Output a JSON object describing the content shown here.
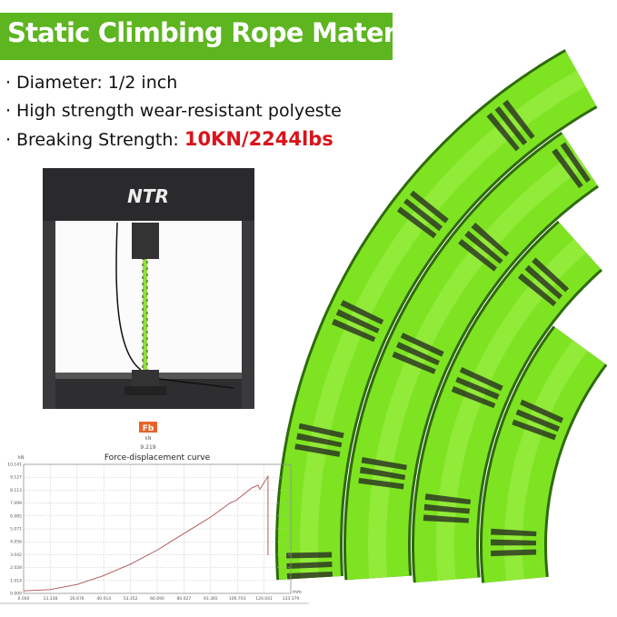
{
  "banner": {
    "title": "Static Climbing Rope Material"
  },
  "specs": [
    {
      "label": "Diameter: 1/2 inch"
    },
    {
      "label": "High strength wear-resistant polyeste"
    },
    {
      "label": "Breaking Strength: ",
      "highlight": "10KN/2244lbs"
    }
  ],
  "machine": {
    "brand": "NTR"
  },
  "colors": {
    "banner": "#5db51f",
    "highlight": "#d9141b",
    "rope": "#7ee422",
    "curve": "#b05050",
    "fb_badge": "#e8642a"
  },
  "chart_data": {
    "type": "line",
    "title": "Force-displacement curve",
    "badge": "Fb",
    "badge_unit": "kN",
    "peak_value": "9.219",
    "ylabel": "kN",
    "xlabel": "mm",
    "xlim": [
      0,
      133.379
    ],
    "ylim": [
      0,
      10.141
    ],
    "grid": true,
    "xticks": [
      "0.000",
      "13.338",
      "26.676",
      "40.014",
      "53.352",
      "66.690",
      "80.027",
      "93.365",
      "106.703",
      "120.041",
      "133.379"
    ],
    "yticks": [
      "0.000",
      "1.014",
      "2.028",
      "3.042",
      "4.056",
      "5.071",
      "6.085",
      "7.099",
      "8.113",
      "9.127",
      "10.141"
    ],
    "series": [
      {
        "x": [
          0,
          13.3,
          26.7,
          40,
          53.4,
          66.7,
          80,
          93.4,
          103,
          106,
          114,
          117,
          118,
          122,
          122
        ],
        "y": [
          0.2,
          0.3,
          0.7,
          1.4,
          2.3,
          3.4,
          4.7,
          6.0,
          7.1,
          7.3,
          8.3,
          8.5,
          8.2,
          9.2,
          3.0
        ]
      }
    ]
  }
}
